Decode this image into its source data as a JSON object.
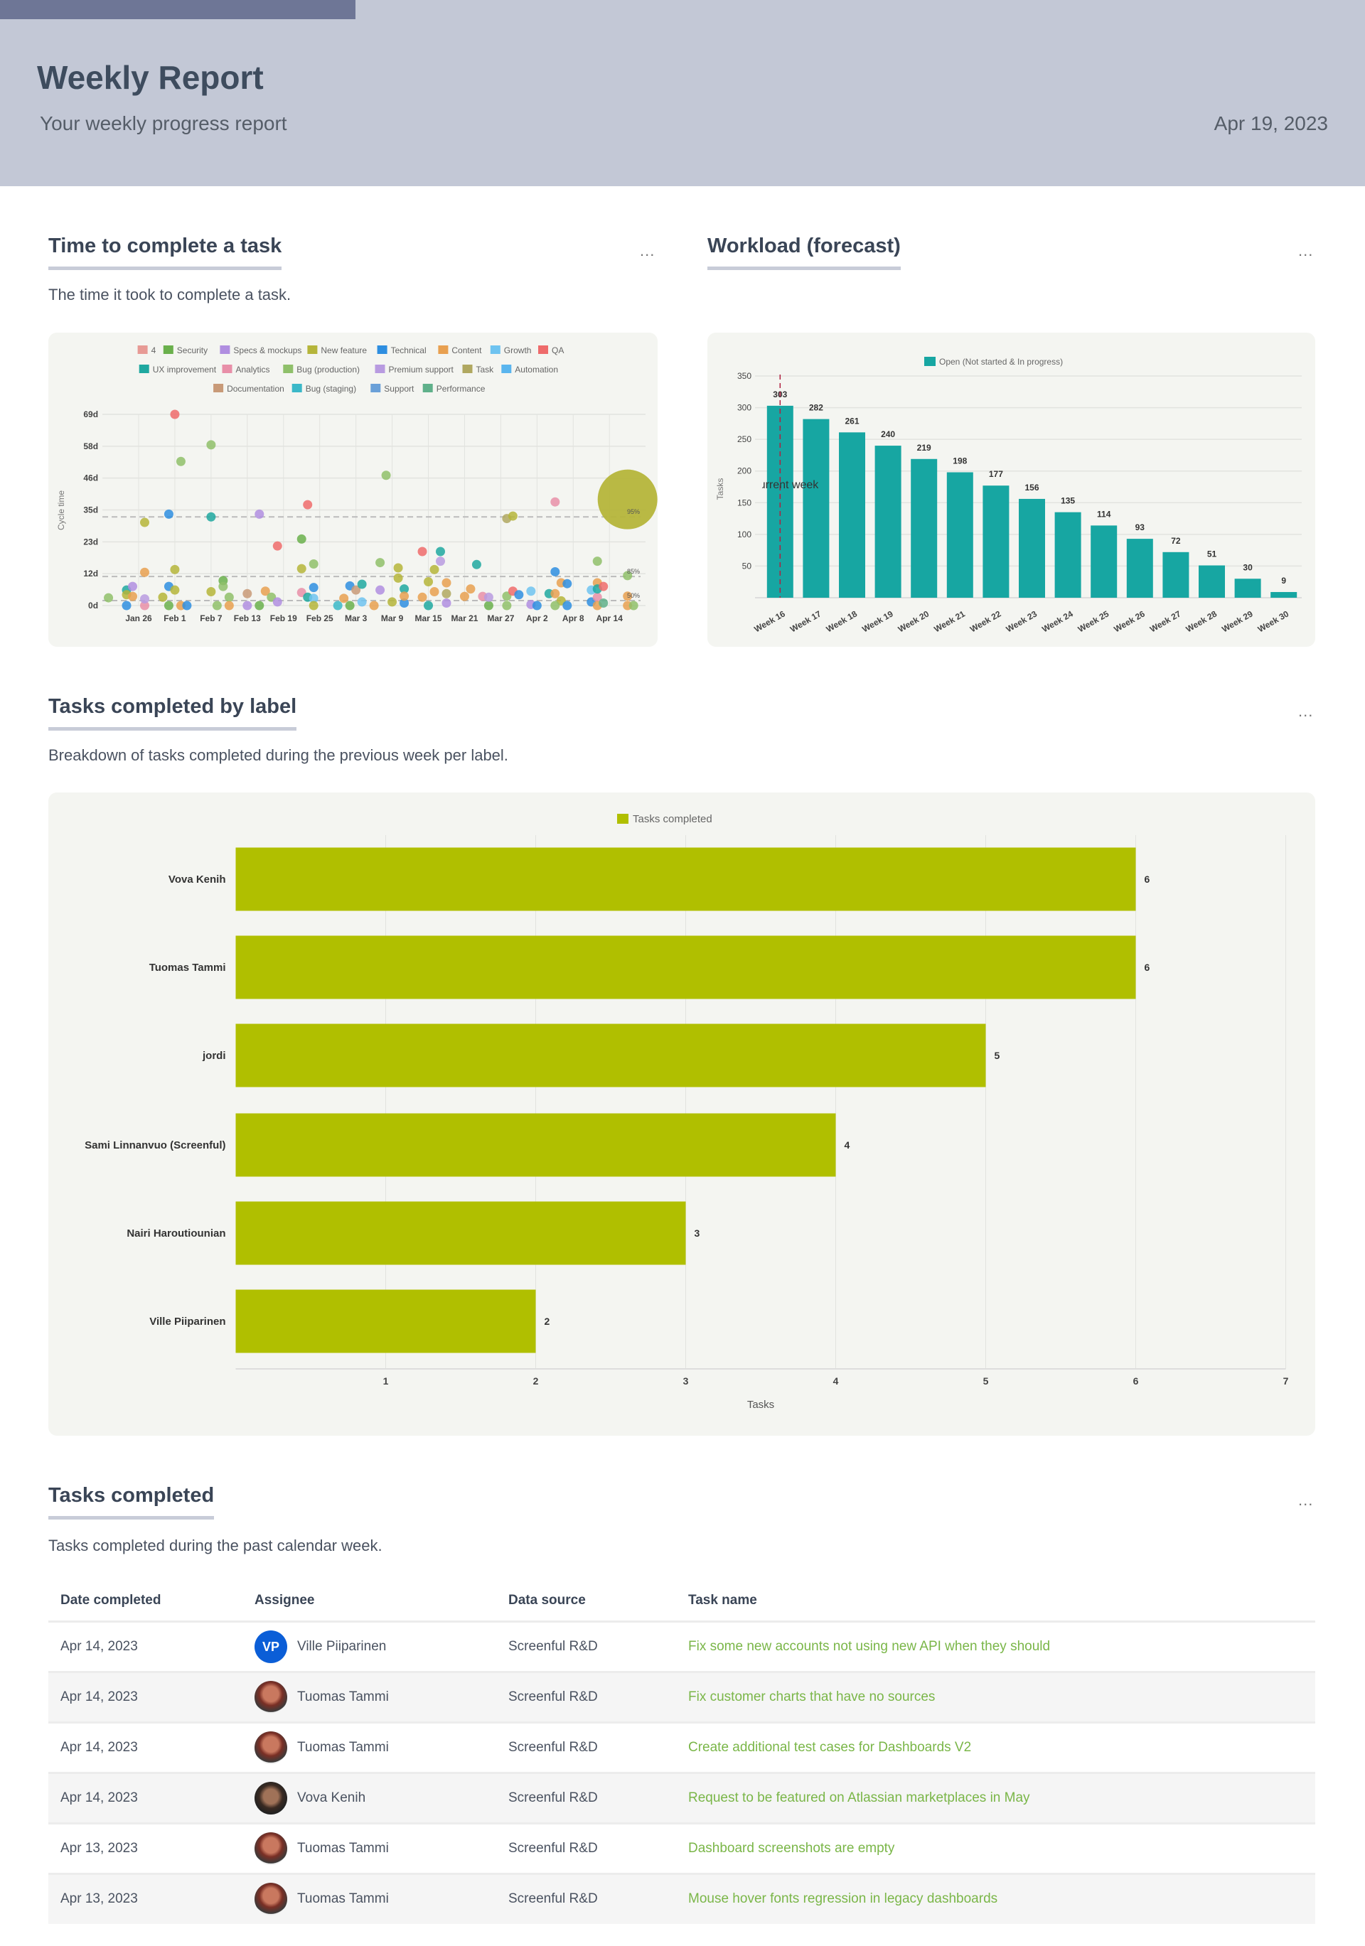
{
  "header": {
    "title": "Weekly Report",
    "subtitle": "Your weekly progress report",
    "date": "Apr 19, 2023"
  },
  "colors": {
    "header_bg": "#c3c8d6",
    "accent_bar": "#6e7696",
    "task_link": "#7ab648",
    "workload_bar": "#17a6a2",
    "label_bar": "#b0bf00",
    "vp_avatar": "#0b5ed7"
  },
  "sections": {
    "cycle": {
      "title": "Time to complete a task",
      "description": "The time it took to complete a task.",
      "menu": "..."
    },
    "workload": {
      "title": "Workload (forecast)",
      "menu": "..."
    },
    "by_label": {
      "title": "Tasks completed by label",
      "description": "Breakdown of tasks completed during the previous week per label.",
      "menu": "..."
    },
    "completed": {
      "title": "Tasks completed",
      "description": "Tasks completed during the past calendar week.",
      "menu": "..."
    }
  },
  "chart_data": [
    {
      "type": "scatter",
      "ylabel": "Cycle time",
      "yticks": [
        "0d",
        "12d",
        "23d",
        "35d",
        "46d",
        "58d",
        "69d"
      ],
      "ytick_values": [
        0,
        11.5,
        23,
        34.5,
        46,
        57.5,
        69
      ],
      "ylim": [
        0,
        69
      ],
      "xticks": [
        "Jan 26",
        "Feb 1",
        "Feb 7",
        "Feb 13",
        "Feb 19",
        "Feb 25",
        "Mar 3",
        "Mar 9",
        "Mar 15",
        "Mar 21",
        "Mar 27",
        "Apr 2",
        "Apr 8",
        "Apr 14"
      ],
      "xlim": [
        "Jan 20",
        "Apr 21"
      ],
      "grid": true,
      "legend_position": "top",
      "percentiles": [
        {
          "label": "95%",
          "value": 32
        },
        {
          "label": "85%",
          "value": 10.5
        },
        {
          "label": "50%",
          "value": 1.8
        }
      ],
      "categories": [
        {
          "name": "4",
          "color": "#e79a95"
        },
        {
          "name": "Security",
          "color": "#6ab04c"
        },
        {
          "name": "Specs & mockups",
          "color": "#b08ee0"
        },
        {
          "name": "New feature",
          "color": "#b5b53a"
        },
        {
          "name": "Technical",
          "color": "#2e8ee0"
        },
        {
          "name": "Content",
          "color": "#e8a050"
        },
        {
          "name": "Growth",
          "color": "#6ec3f0"
        },
        {
          "name": "QA",
          "color": "#ee6b6b"
        },
        {
          "name": "UX improvement",
          "color": "#1fa8a0"
        },
        {
          "name": "Analytics",
          "color": "#e88fa8"
        },
        {
          "name": "Bug (production)",
          "color": "#8fc06a"
        },
        {
          "name": "Premium support",
          "color": "#b89be0"
        },
        {
          "name": "Task",
          "color": "#b0a860"
        },
        {
          "name": "Automation",
          "color": "#5ab5ee"
        },
        {
          "name": "Documentation",
          "color": "#c89a78"
        },
        {
          "name": "Bug (staging)",
          "color": "#3bb8c8"
        },
        {
          "name": "Support",
          "color": "#6aa0d8"
        },
        {
          "name": "Performance",
          "color": "#5fb08a"
        }
      ],
      "highlight_point": {
        "date": "Apr 17",
        "days": 38.3,
        "category": "New feature"
      },
      "points": [
        [
          "Jan 21",
          2.8,
          "Bug (production)"
        ],
        [
          "Jan 24",
          5.6,
          "UX improvement"
        ],
        [
          "Jan 24",
          3.9,
          "New feature"
        ],
        [
          "Jan 24",
          0,
          "Technical"
        ],
        [
          "Jan 25",
          6.9,
          "Specs & mockups"
        ],
        [
          "Jan 25",
          3.3,
          "Content"
        ],
        [
          "Jan 27",
          0,
          "Analytics"
        ],
        [
          "Jan 27",
          12,
          "Content"
        ],
        [
          "Jan 27",
          30,
          "New feature"
        ],
        [
          "Jan 27",
          2.4,
          "Premium support"
        ],
        [
          "Jan 31",
          6.9,
          "Technical"
        ],
        [
          "Jan 30",
          3,
          "New feature"
        ],
        [
          "Jan 31",
          33,
          "Technical"
        ],
        [
          "Jan 31",
          0,
          "Security"
        ],
        [
          "Feb 1",
          69,
          "QA"
        ],
        [
          "Feb 1",
          13,
          "New feature"
        ],
        [
          "Feb 1",
          5.6,
          "New feature"
        ],
        [
          "Feb 2",
          52,
          "Bug (production)"
        ],
        [
          "Feb 2",
          0,
          "Content"
        ],
        [
          "Feb 3",
          0,
          "Technical"
        ],
        [
          "Feb 7",
          5,
          "New feature"
        ],
        [
          "Feb 7",
          58,
          "Bug (production)"
        ],
        [
          "Feb 7",
          32,
          "UX improvement"
        ],
        [
          "Feb 9",
          9,
          "Security"
        ],
        [
          "Feb 9",
          6.9,
          "Bug (production)"
        ],
        [
          "Feb 8",
          0,
          "Bug (production)"
        ],
        [
          "Feb 10",
          3,
          "Bug (production)"
        ],
        [
          "Feb 10",
          0,
          "Content"
        ],
        [
          "Feb 13",
          4.3,
          "Documentation"
        ],
        [
          "Feb 13",
          0,
          "Specs & mockups"
        ],
        [
          "Feb 15",
          33,
          "Specs & mockups"
        ],
        [
          "Feb 16",
          5.2,
          "Content"
        ],
        [
          "Feb 15",
          0,
          "Security"
        ],
        [
          "Feb 17",
          3,
          "Bug (production)"
        ],
        [
          "Feb 18",
          21.5,
          "QA"
        ],
        [
          "Feb 18",
          1.3,
          "Specs & mockups"
        ],
        [
          "Feb 22",
          4.7,
          "Analytics"
        ],
        [
          "Feb 22",
          24,
          "Security"
        ],
        [
          "Feb 22",
          13.3,
          "New feature"
        ],
        [
          "Feb 23",
          36.4,
          "QA"
        ],
        [
          "Feb 24",
          15,
          "Bug (production)"
        ],
        [
          "Feb 24",
          6.5,
          "Technical"
        ],
        [
          "Feb 23",
          3,
          "UX improvement"
        ],
        [
          "Feb 24",
          2.6,
          "Growth"
        ],
        [
          "Feb 24",
          0,
          "New feature"
        ],
        [
          "Feb 28",
          0,
          "Bug (staging)"
        ],
        [
          "Mar 1",
          2.6,
          "Content"
        ],
        [
          "Mar 2",
          7.1,
          "Technical"
        ],
        [
          "Mar 2",
          0,
          "Security"
        ],
        [
          "Mar 3",
          5.6,
          "Documentation"
        ],
        [
          "Mar 4",
          7.7,
          "UX improvement"
        ],
        [
          "Mar 4",
          1.3,
          "Growth"
        ],
        [
          "Mar 6",
          0,
          "Content"
        ],
        [
          "Mar 7",
          5.6,
          "Specs & mockups"
        ],
        [
          "Mar 7",
          15.5,
          "Bug (production)"
        ],
        [
          "Mar 8",
          47,
          "Bug (production)"
        ],
        [
          "Mar 9",
          1.3,
          "New feature"
        ],
        [
          "Mar 10",
          13.6,
          "New feature"
        ],
        [
          "Mar 10",
          9.9,
          "New feature"
        ],
        [
          "Mar 11",
          0.9,
          "Technical"
        ],
        [
          "Mar 11",
          6,
          "UX improvement"
        ],
        [
          "Mar 11",
          3.4,
          "Content"
        ],
        [
          "Mar 14",
          3,
          "Content"
        ],
        [
          "Mar 14",
          19.5,
          "QA"
        ],
        [
          "Mar 15",
          0,
          "UX improvement"
        ],
        [
          "Mar 16",
          13,
          "New feature"
        ],
        [
          "Mar 15",
          8.6,
          "New feature"
        ],
        [
          "Mar 16",
          5,
          "Content"
        ],
        [
          "Mar 17",
          19.5,
          "UX improvement"
        ],
        [
          "Mar 17",
          16,
          "Premium support"
        ],
        [
          "Mar 18",
          8.2,
          "Content"
        ],
        [
          "Mar 18",
          0.9,
          "Specs & mockups"
        ],
        [
          "Mar 18",
          4.3,
          "Task"
        ],
        [
          "Mar 21",
          3.3,
          "Content"
        ],
        [
          "Mar 22",
          6,
          "Content"
        ],
        [
          "Mar 23",
          14.8,
          "UX improvement"
        ],
        [
          "Mar 24",
          3.3,
          "Analytics"
        ],
        [
          "Mar 25",
          0,
          "Security"
        ],
        [
          "Mar 25",
          3,
          "Premium support"
        ],
        [
          "Mar 28",
          31.4,
          "Task"
        ],
        [
          "Mar 29",
          32.3,
          "New feature"
        ],
        [
          "Mar 28",
          3.4,
          "Bug (production)"
        ],
        [
          "Mar 29",
          5.2,
          "QA"
        ],
        [
          "Mar 28",
          0,
          "Bug (production)"
        ],
        [
          "Mar 30",
          3.9,
          "Technical"
        ],
        [
          "Apr 1",
          0.4,
          "Specs & mockups"
        ],
        [
          "Apr 1",
          5.2,
          "Growth"
        ],
        [
          "Apr 2",
          0,
          "Technical"
        ],
        [
          "Apr 4",
          4.3,
          "UX improvement"
        ],
        [
          "Apr 5",
          37.4,
          "Analytics"
        ],
        [
          "Apr 5",
          12.2,
          "Technical"
        ],
        [
          "Apr 5",
          4.3,
          "Content"
        ],
        [
          "Apr 6",
          8.2,
          "Content"
        ],
        [
          "Apr 6",
          1.7,
          "New feature"
        ],
        [
          "Apr 7",
          7.9,
          "Technical"
        ],
        [
          "Apr 7",
          0,
          "Technical"
        ],
        [
          "Apr 5",
          0,
          "Bug (production)"
        ],
        [
          "Apr 11",
          1.3,
          "Technical"
        ],
        [
          "Apr 12",
          8.2,
          "Content"
        ],
        [
          "Apr 11",
          5.6,
          "Growth"
        ],
        [
          "Apr 12",
          16,
          "Bug (production)"
        ],
        [
          "Apr 12",
          3,
          "Analytics"
        ],
        [
          "Apr 12",
          6,
          "UX improvement"
        ],
        [
          "Apr 12",
          0,
          "Content"
        ],
        [
          "Apr 13",
          6.9,
          "QA"
        ],
        [
          "Apr 13",
          0.9,
          "Performance"
        ],
        [
          "Apr 17",
          10.8,
          "Bug (production)"
        ],
        [
          "Apr 17",
          3.4,
          "Content"
        ],
        [
          "Apr 17",
          0,
          "Content"
        ],
        [
          "Apr 18",
          0,
          "Bug (production)"
        ]
      ]
    },
    {
      "type": "bar",
      "legend": "Open (Not started & In progress)",
      "ylabel": "Tasks",
      "ylim": [
        0,
        350
      ],
      "yticks": [
        50,
        100,
        150,
        200,
        250,
        300,
        350
      ],
      "categories": [
        "Week 16",
        "Week 17",
        "Week 18",
        "Week 19",
        "Week 20",
        "Week 21",
        "Week 22",
        "Week 23",
        "Week 24",
        "Week 25",
        "Week 26",
        "Week 27",
        "Week 28",
        "Week 29",
        "Week 30"
      ],
      "values": [
        303,
        282,
        261,
        240,
        219,
        198,
        177,
        156,
        135,
        114,
        93,
        72,
        51,
        30,
        9
      ],
      "marker": {
        "category": "Week 16",
        "label": "Current week"
      },
      "grid": true
    },
    {
      "type": "bar",
      "orientation": "horizontal",
      "legend": "Tasks completed",
      "xlabel": "Tasks",
      "xlim": [
        0,
        7
      ],
      "xticks": [
        1,
        2,
        3,
        4,
        5,
        6,
        7
      ],
      "categories": [
        "Vova Kenih",
        "Tuomas Tammi",
        "jordi",
        "Sami Linnanvuo (Screenful)",
        "Nairi Haroutiounian",
        "Ville Piiparinen"
      ],
      "values": [
        6,
        6,
        5,
        4,
        3,
        2
      ]
    }
  ],
  "table": {
    "columns": [
      "Date completed",
      "Assignee",
      "Data source",
      "Task name"
    ],
    "rows": [
      {
        "date": "Apr 14, 2023",
        "assignee": "Ville Piiparinen",
        "avatar": "VP",
        "avatar_type": "initials",
        "source": "Screenful R&D",
        "task": "Fix some new accounts not using new API when they should"
      },
      {
        "date": "Apr 14, 2023",
        "assignee": "Tuomas Tammi",
        "avatar_type": "photo-tuomas",
        "source": "Screenful R&D",
        "task": "Fix customer charts that have no sources"
      },
      {
        "date": "Apr 14, 2023",
        "assignee": "Tuomas Tammi",
        "avatar_type": "photo-tuomas",
        "source": "Screenful R&D",
        "task": "Create additional test cases for Dashboards V2"
      },
      {
        "date": "Apr 14, 2023",
        "assignee": "Vova Kenih",
        "avatar_type": "photo-vova",
        "source": "Screenful R&D",
        "task": "Request to be featured on Atlassian marketplaces in May"
      },
      {
        "date": "Apr 13, 2023",
        "assignee": "Tuomas Tammi",
        "avatar_type": "photo-tuomas",
        "source": "Screenful R&D",
        "task": "Dashboard screenshots are empty"
      },
      {
        "date": "Apr 13, 2023",
        "assignee": "Tuomas Tammi",
        "avatar_type": "photo-tuomas",
        "source": "Screenful R&D",
        "task": "Mouse hover fonts regression in legacy dashboards"
      }
    ]
  }
}
